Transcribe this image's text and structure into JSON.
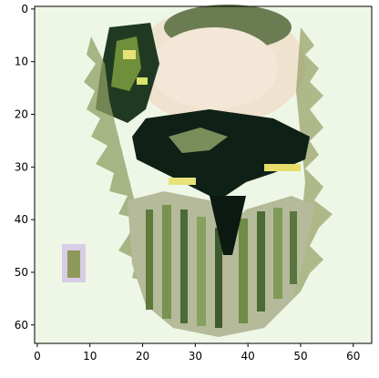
{
  "image": {
    "description_source": "matplotlib imshow of a 64x64 pixelated image",
    "extent": {
      "x": [
        0,
        63
      ],
      "y": [
        0,
        63
      ]
    }
  },
  "axes": {
    "x_ticks": [
      "0",
      "10",
      "20",
      "30",
      "40",
      "50",
      "60"
    ],
    "y_ticks": [
      "0",
      "10",
      "20",
      "30",
      "40",
      "50",
      "60"
    ],
    "x_tick_values": [
      0,
      10,
      20,
      30,
      40,
      50,
      60
    ],
    "y_tick_values": [
      0,
      10,
      20,
      30,
      40,
      50,
      60
    ]
  },
  "colors": {
    "background": "#eef7e6",
    "cream": "#f0e6d2",
    "pale": "#e6f2dc",
    "olive": "#8a9a5b",
    "dark": "#0d1f16",
    "green": "#5d7a3c",
    "yellow": "#e8e27a",
    "purple": "#6b5aa0",
    "gray": "#9aa38a",
    "tan": "#c9b897"
  }
}
